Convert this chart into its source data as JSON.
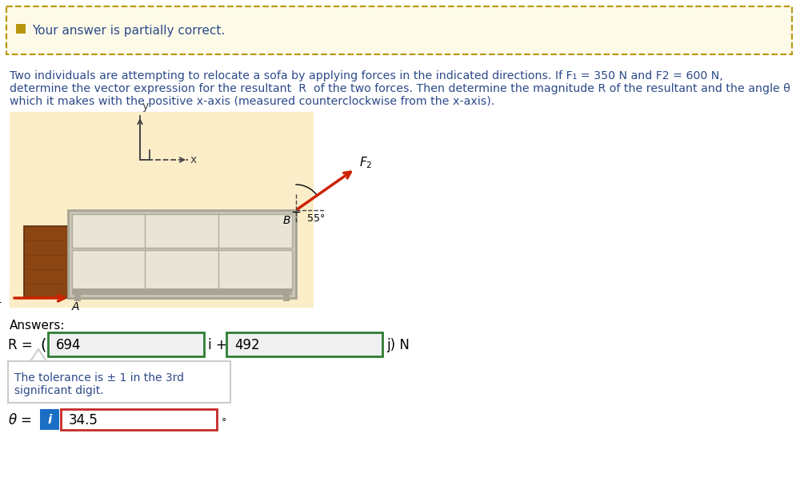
{
  "title_box_text": "Your answer is partially correct.",
  "title_box_bg": "#fdfae8",
  "title_box_border": "#b8960c",
  "problem_text_line1": "Two individuals are attempting to relocate a sofa by applying forces in the indicated directions. If F₁ = 350 N and F2 = 600 N,",
  "problem_text_line2": "determine the vector expression for the resultant  R  of the two forces. Then determine the magnitude R of the resultant and the angle θ",
  "problem_text_line3": "which it makes with the positive x-axis (measured counterclockwise from the x-axis).",
  "diagram_bg": "#faedc8",
  "answers_label": "Answers:",
  "R_value1": "694",
  "R_value2": "492",
  "tolerance_line1": "The tolerance is ± 1 in the 3rd",
  "tolerance_line2": "significant digit.",
  "theta_value": "34.5",
  "info_box_bg": "#1a6fc4",
  "text_color": "#2c4a8a",
  "green_border": "#2e7d32",
  "red_border": "#c62828",
  "sofa_bg": "#e8e4d8",
  "sofa_frame": "#c8c4b4",
  "sofa_dark": "#a8a494",
  "wood_color": "#8B4513",
  "wood_dark": "#5c2e0a",
  "arrow_red": "#cc2200",
  "axis_dark": "#444444",
  "cushion_line": "#b0ac9c",
  "input_bg": "#f0f0f0"
}
